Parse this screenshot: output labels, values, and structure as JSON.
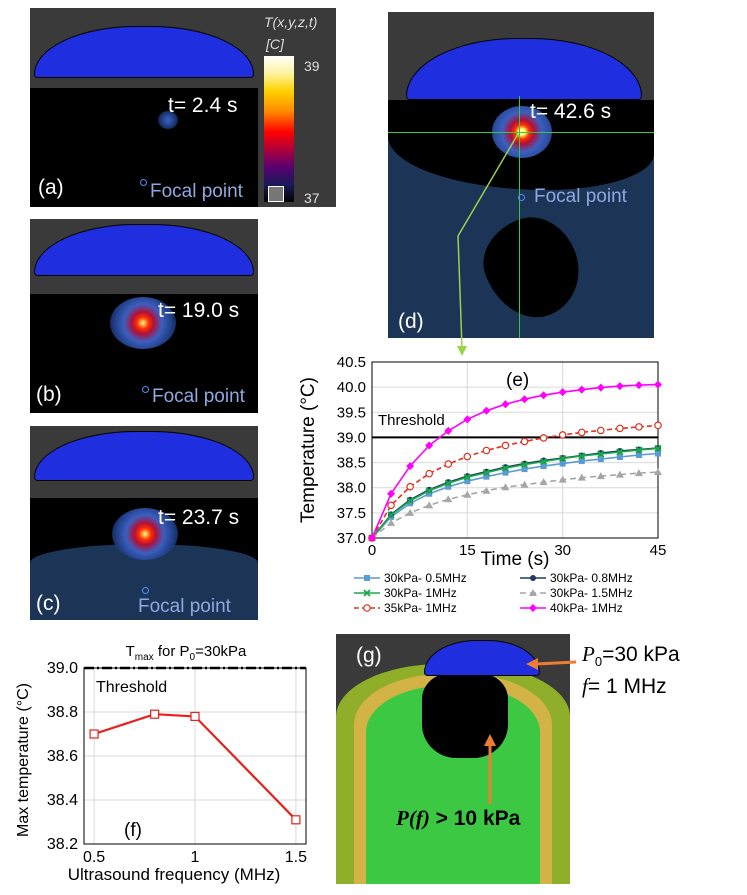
{
  "colorbar": {
    "title": "T(x,y,z,t)",
    "unit": "[C]",
    "max_label": "39",
    "min_label": "37"
  },
  "panels": {
    "a": {
      "id": "(a)",
      "time": "t= 2.4 s",
      "focal": "Focal point"
    },
    "b": {
      "id": "(b)",
      "time": "t= 19.0 s",
      "focal": "Focal point"
    },
    "c": {
      "id": "(c)",
      "time": "t= 23.7 s",
      "focal": "Focal point"
    },
    "d": {
      "id": "(d)",
      "time": "t= 42.6 s",
      "focal": "Focal point"
    },
    "g": {
      "id": "(g)",
      "p0_label": "P",
      "p0_sub": "0",
      "p0_value": "=30 kPa",
      "f_label": "f",
      "f_value": "= 1 MHz",
      "pf_label": "P(f)",
      "pf_value": " > 10 kPa"
    }
  },
  "chart_data": [
    {
      "id": "e",
      "type": "line",
      "panel_label": "(e)",
      "xlabel": "Time (s)",
      "ylabel": "Temperature (°C)",
      "xlim": [
        0,
        45
      ],
      "ylim": [
        37.0,
        40.5
      ],
      "xticks": [
        "0",
        "15",
        "30",
        "45"
      ],
      "yticks": [
        "37.0",
        "37.5",
        "38.0",
        "38.5",
        "39.0",
        "39.5",
        "40.0",
        "40.5"
      ],
      "grid": true,
      "threshold": {
        "label": "Threshold",
        "value": 39.0
      },
      "legend_position": "bottom",
      "x": [
        0,
        3,
        6,
        9,
        12,
        15,
        18,
        21,
        24,
        27,
        30,
        33,
        36,
        39,
        42,
        45
      ],
      "series": [
        {
          "name": "30kPa- 0.5MHz",
          "color": "#5b9bd5",
          "marker": "square",
          "dash": "",
          "values": [
            37.0,
            37.42,
            37.69,
            37.88,
            38.02,
            38.13,
            38.22,
            38.3,
            38.37,
            38.43,
            38.48,
            38.53,
            38.57,
            38.61,
            38.65,
            38.68
          ]
        },
        {
          "name": "30kPa- 0.8MHz",
          "color": "#1f3864",
          "marker": "circle",
          "dash": "",
          "values": [
            37.0,
            37.47,
            37.76,
            37.96,
            38.11,
            38.23,
            38.32,
            38.41,
            38.48,
            38.54,
            38.59,
            38.64,
            38.69,
            38.73,
            38.76,
            38.79
          ]
        },
        {
          "name": "30kPa- 1MHz",
          "color": "#1aa84a",
          "marker": "x",
          "dash": "",
          "values": [
            37.0,
            37.46,
            37.74,
            37.94,
            38.09,
            38.21,
            38.3,
            38.39,
            38.46,
            38.52,
            38.58,
            38.63,
            38.67,
            38.71,
            38.75,
            38.78
          ]
        },
        {
          "name": "30kPa- 1.5MHz",
          "color": "#a6a6a6",
          "marker": "triangle",
          "dash": "6,4",
          "values": [
            37.0,
            37.3,
            37.5,
            37.65,
            37.77,
            37.86,
            37.94,
            38.01,
            38.06,
            38.11,
            38.16,
            38.2,
            38.23,
            38.26,
            38.29,
            38.31
          ]
        },
        {
          "name": "35kPa- 1MHz",
          "color": "#e0301e",
          "marker": "open-circle",
          "dash": "5,3",
          "values": [
            37.0,
            37.65,
            38.02,
            38.28,
            38.47,
            38.62,
            38.74,
            38.84,
            38.92,
            38.99,
            39.05,
            39.1,
            39.14,
            39.18,
            39.21,
            39.24
          ]
        },
        {
          "name": "40kPa- 1MHz",
          "color": "#ff00ff",
          "marker": "diamond",
          "dash": "",
          "values": [
            37.0,
            37.88,
            38.43,
            38.84,
            39.13,
            39.36,
            39.53,
            39.66,
            39.76,
            39.84,
            39.9,
            39.95,
            39.99,
            40.02,
            40.04,
            40.05
          ]
        }
      ]
    },
    {
      "id": "f",
      "type": "line",
      "panel_label": "(f)",
      "title": "Tmax for P0=30kPa",
      "title_main": "T",
      "title_sub": "max",
      "title_mid": " for P",
      "title_sub2": "0",
      "title_end": "=30kPa",
      "xlabel": "Ultrasound frequency (MHz)",
      "ylabel": "Max temperature (°C)",
      "xlim": [
        0.45,
        1.55
      ],
      "ylim": [
        38.2,
        39.0
      ],
      "xticks": [
        "0.5",
        "1",
        "1.5"
      ],
      "yticks": [
        "38.2",
        "38.4",
        "38.6",
        "38.8",
        "39.0"
      ],
      "grid": true,
      "threshold": {
        "label": "Threshold",
        "value": 39.0
      },
      "x": [
        0.5,
        0.8,
        1.0,
        1.5
      ],
      "series": [
        {
          "color": "#e8201a",
          "marker": "open-square",
          "values": [
            38.7,
            38.79,
            38.78,
            38.31
          ]
        }
      ]
    }
  ]
}
